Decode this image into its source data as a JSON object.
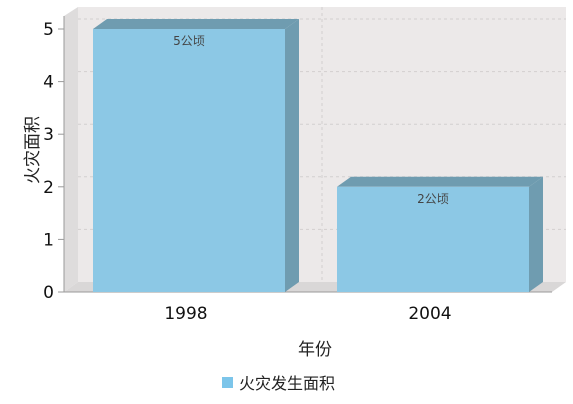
{
  "chart_data": {
    "type": "bar",
    "categories": [
      "1998",
      "2004"
    ],
    "series": [
      {
        "name": "火灾发生面积",
        "values": [
          5,
          2
        ]
      }
    ],
    "data_labels": [
      "5公顷",
      "2公顷"
    ],
    "xlabel": "年份",
    "ylabel": "火灾面积",
    "ylim": [
      0,
      5
    ],
    "yticks": [
      "0",
      "1",
      "2",
      "3",
      "4",
      "5"
    ],
    "grid": true,
    "legend_position": "bottom",
    "colors": {
      "bar_front": "#8cc8e5",
      "bar_side": "#6f9cb0",
      "bar_top": "#6f9cb0",
      "plot_back": "#ece9e9",
      "grid": "#d2cfcf",
      "legend_swatch": "#7cc5ea"
    }
  }
}
